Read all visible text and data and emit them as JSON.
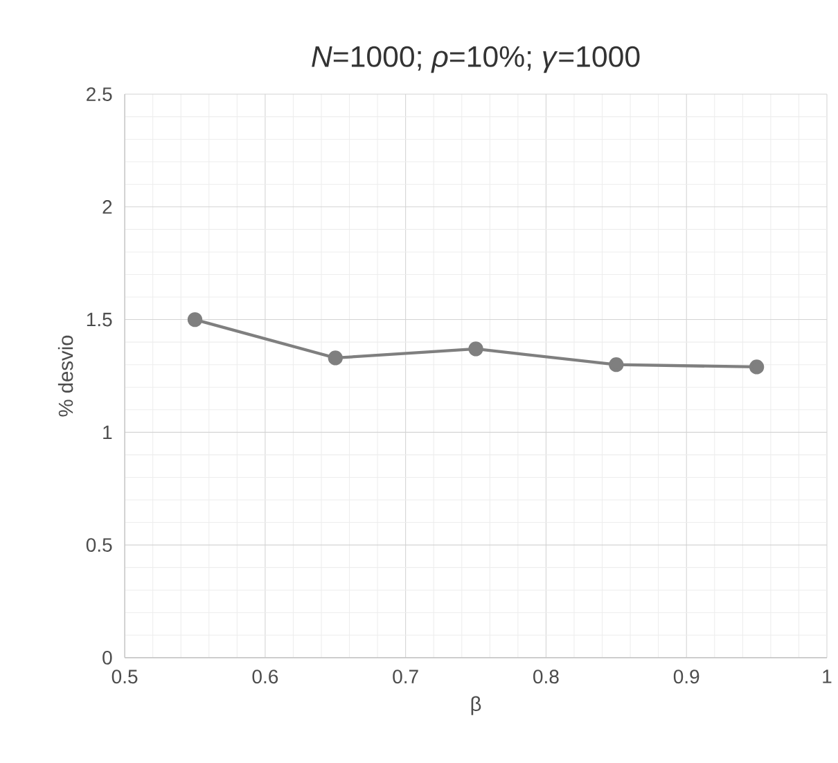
{
  "chart_data": {
    "type": "line",
    "title": "*N*=1000; *ρ*=10%; *γ*=1000",
    "xlabel": "β",
    "ylabel": "% desvio",
    "x": [
      0.55,
      0.65,
      0.75,
      0.85,
      0.95
    ],
    "series": [
      {
        "color": "#7f7f7f",
        "values": [
          1.5,
          1.33,
          1.37,
          1.3,
          1.29
        ]
      }
    ],
    "xlim": [
      0.5,
      1
    ],
    "xticks": [
      0.5,
      0.6,
      0.7,
      0.8,
      0.9,
      1
    ],
    "ylim": [
      0,
      2.5
    ],
    "yticks": [
      0,
      0.5,
      1,
      1.5,
      2,
      2.5
    ],
    "grid": true,
    "marker": "circle",
    "line_style": "solid"
  }
}
